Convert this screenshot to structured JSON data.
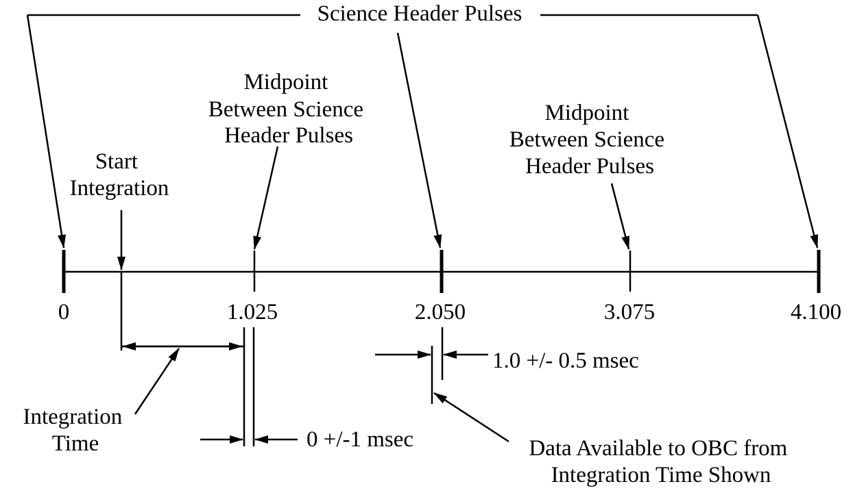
{
  "title": "Science Header Pulses",
  "labels": {
    "midpoint_1": [
      "Midpoint",
      "Between Science",
      "Header Pulses"
    ],
    "midpoint_2": [
      "Midpoint",
      "Between Science",
      "Header Pulses"
    ],
    "start_integration": [
      "Start",
      "Integration"
    ],
    "integration_time": [
      "Integration",
      "Time"
    ],
    "tolerance_1": "0 +/-1 msec",
    "tolerance_2": "1.0 +/- 0.5 msec",
    "data_available": [
      "Data Available to OBC from",
      "Integration Time Shown"
    ]
  },
  "axis_ticks": [
    "0",
    "1.025",
    "2.050",
    "3.075",
    "4.100"
  ]
}
